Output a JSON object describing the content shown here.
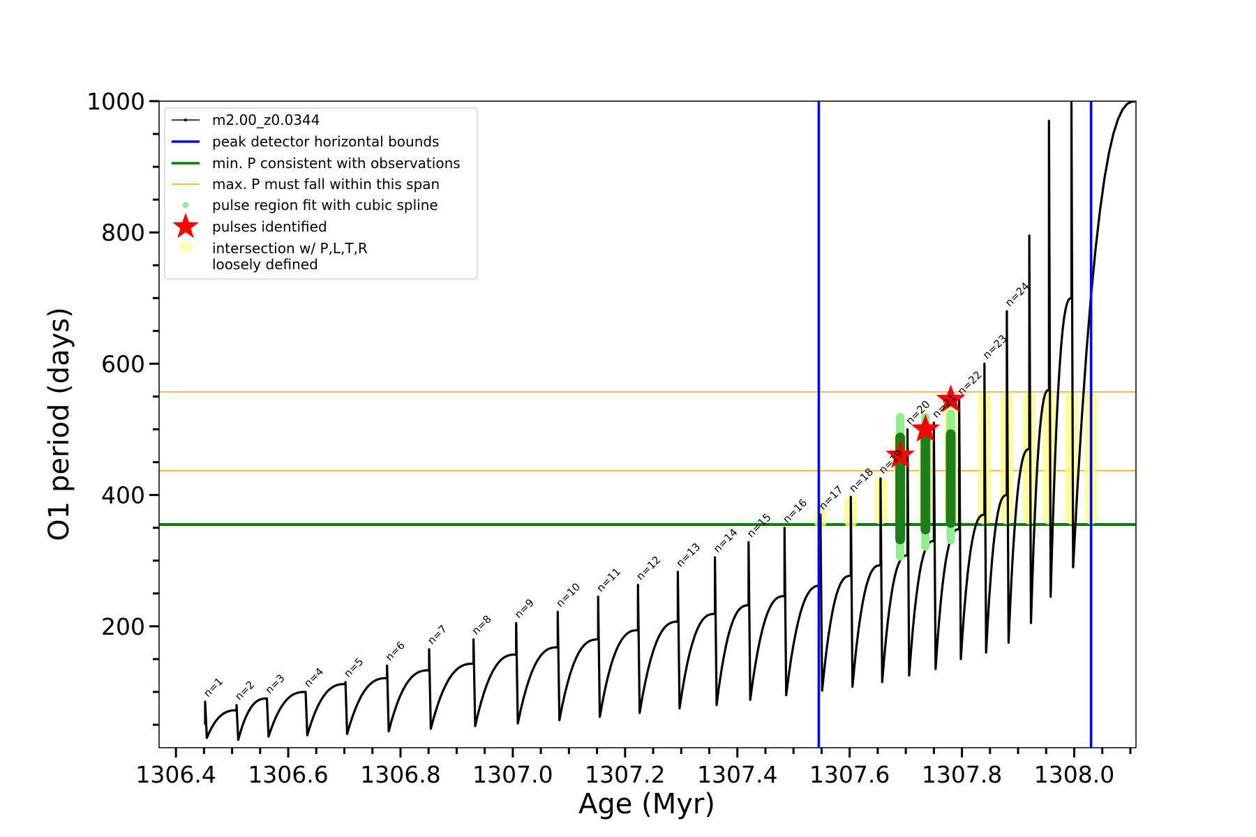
{
  "chart_data": {
    "type": "line",
    "xlabel": "Age (Myr)",
    "ylabel": "O1 period (days)",
    "xlim": [
      1306.37,
      1308.11
    ],
    "ylim": [
      15,
      1000
    ],
    "x_ticks": [
      1306.4,
      1306.6,
      1306.8,
      1307.0,
      1307.2,
      1307.4,
      1307.6,
      1307.8,
      1308.0
    ],
    "x_tick_labels": [
      "1306.4",
      "1306.6",
      "1306.8",
      "1307.0",
      "1307.2",
      "1307.4",
      "1307.6",
      "1307.8",
      "1308.0"
    ],
    "y_ticks": [
      200,
      400,
      600,
      800,
      1000
    ],
    "y_tick_labels": [
      "200",
      "400",
      "600",
      "800",
      "1000"
    ],
    "legend_position": "top-left",
    "legend": [
      {
        "label": "m2.00_z0.0344",
        "marker": "line-dot",
        "color": "#000000"
      },
      {
        "label": "peak detector horizontal bounds",
        "marker": "line",
        "color": "#0000ff"
      },
      {
        "label": "min. P consistent with observations",
        "marker": "line",
        "color": "#008000"
      },
      {
        "label": "max. P must fall within this span",
        "marker": "thin-line",
        "color": "#ffa500"
      },
      {
        "label": "pulse region fit with cubic spline",
        "marker": "dot",
        "color": "#90ee90"
      },
      {
        "label": "pulses identified",
        "marker": "star",
        "color": "#ff0000"
      },
      {
        "label": "intersection w/ P,L,T,R",
        "label2": "loosely defined",
        "marker": "circle",
        "color": "#ffff80"
      }
    ],
    "vertical_lines": [
      {
        "x": 1307.545,
        "color": "#0000ff"
      },
      {
        "x": 1308.03,
        "color": "#0000ff"
      }
    ],
    "horizontal_lines": [
      {
        "y": 355,
        "color": "#008000"
      },
      {
        "y": 437,
        "color": "#ffa500"
      },
      {
        "y": 557,
        "color": "#ffa500"
      }
    ],
    "pulses": [
      {
        "n": "n=1",
        "x": 1306.452,
        "p_min": 30,
        "p_peak": 85,
        "p_end": 72
      },
      {
        "n": "n=2",
        "x": 1306.508,
        "p_min": 27,
        "p_peak": 80,
        "p_end": 90
      },
      {
        "n": "n=3",
        "x": 1306.562,
        "p_min": 32,
        "p_peak": 90,
        "p_end": 100
      },
      {
        "n": "n=4",
        "x": 1306.631,
        "p_min": 34,
        "p_peak": 100,
        "p_end": 112
      },
      {
        "n": "n=5",
        "x": 1306.702,
        "p_min": 36,
        "p_peak": 115,
        "p_end": 121
      },
      {
        "n": "n=6",
        "x": 1306.776,
        "p_min": 40,
        "p_peak": 140,
        "p_end": 133
      },
      {
        "n": "n=7",
        "x": 1306.851,
        "p_min": 44,
        "p_peak": 165,
        "p_end": 143
      },
      {
        "n": "n=8",
        "x": 1306.93,
        "p_min": 48,
        "p_peak": 180,
        "p_end": 157
      },
      {
        "n": "n=9",
        "x": 1307.006,
        "p_min": 52,
        "p_peak": 205,
        "p_end": 168
      },
      {
        "n": "n=10",
        "x": 1307.08,
        "p_min": 57,
        "p_peak": 222,
        "p_end": 180
      },
      {
        "n": "n=11",
        "x": 1307.152,
        "p_min": 62,
        "p_peak": 245,
        "p_end": 194
      },
      {
        "n": "n=12",
        "x": 1307.223,
        "p_min": 68,
        "p_peak": 263,
        "p_end": 207
      },
      {
        "n": "n=13",
        "x": 1307.294,
        "p_min": 75,
        "p_peak": 283,
        "p_end": 219
      },
      {
        "n": "n=14",
        "x": 1307.36,
        "p_min": 80,
        "p_peak": 305,
        "p_end": 232
      },
      {
        "n": "n=15",
        "x": 1307.42,
        "p_min": 88,
        "p_peak": 328,
        "p_end": 246
      },
      {
        "n": "n=16",
        "x": 1307.484,
        "p_min": 95,
        "p_peak": 350,
        "p_end": 262
      },
      {
        "n": "n=17",
        "x": 1307.548,
        "p_min": 102,
        "p_peak": 370,
        "p_end": 277
      },
      {
        "n": "n=18",
        "x": 1307.602,
        "p_min": 108,
        "p_peak": 397,
        "p_end": 293
      },
      {
        "n": "n=19",
        "x": 1307.655,
        "p_min": 115,
        "p_peak": 425,
        "p_end": 308
      },
      {
        "n": "n=20",
        "x": 1307.703,
        "p_min": 125,
        "p_peak": 500,
        "p_end": 330
      },
      {
        "n": "n=21",
        "x": 1307.75,
        "p_min": 135,
        "p_peak": 510,
        "p_end": 348
      },
      {
        "n": "n=22",
        "x": 1307.795,
        "p_min": 150,
        "p_peak": 545,
        "p_end": 370
      },
      {
        "n": "n=23",
        "x": 1307.84,
        "p_min": 160,
        "p_peak": 600,
        "p_end": 400
      },
      {
        "n": "n=24",
        "x": 1307.88,
        "p_min": 175,
        "p_peak": 680,
        "p_end": 470
      },
      {
        "n": "",
        "x": 1307.92,
        "p_min": 205,
        "p_peak": 795,
        "p_end": 560
      },
      {
        "n": "",
        "x": 1307.955,
        "p_min": 245,
        "p_peak": 970,
        "p_end": 700
      },
      {
        "n": "",
        "x": 1307.995,
        "p_min": 290,
        "p_peak": 1000,
        "p_end": 1000
      }
    ],
    "pulses_identified": [
      {
        "x": 1307.69,
        "y": 460
      },
      {
        "x": 1307.735,
        "y": 500
      },
      {
        "x": 1307.78,
        "y": 545
      }
    ],
    "spline_fit_regions": [
      {
        "x": 1307.69,
        "y_min": 300,
        "y_max": 525
      },
      {
        "x": 1307.735,
        "y_min": 315,
        "y_max": 525
      },
      {
        "x": 1307.78,
        "y_min": 325,
        "y_max": 530
      }
    ],
    "intersection_regions": [
      {
        "x": 1307.548,
        "y_min": 350,
        "y_max": 380
      },
      {
        "x": 1307.602,
        "y_min": 350,
        "y_max": 400
      },
      {
        "x": 1307.655,
        "y_min": 355,
        "y_max": 428
      },
      {
        "x": 1307.69,
        "y_min": 355,
        "y_max": 500
      },
      {
        "x": 1307.735,
        "y_min": 355,
        "y_max": 505
      },
      {
        "x": 1307.78,
        "y_min": 355,
        "y_max": 545
      },
      {
        "x": 1307.84,
        "y_min": 355,
        "y_max": 557
      },
      {
        "x": 1307.88,
        "y_min": 355,
        "y_max": 557
      },
      {
        "x": 1307.92,
        "y_min": 355,
        "y_max": 557
      },
      {
        "x": 1307.955,
        "y_min": 355,
        "y_max": 557
      },
      {
        "x": 1307.995,
        "y_min": 355,
        "y_max": 557
      },
      {
        "x": 1308.03,
        "y_min": 355,
        "y_max": 557
      }
    ]
  }
}
